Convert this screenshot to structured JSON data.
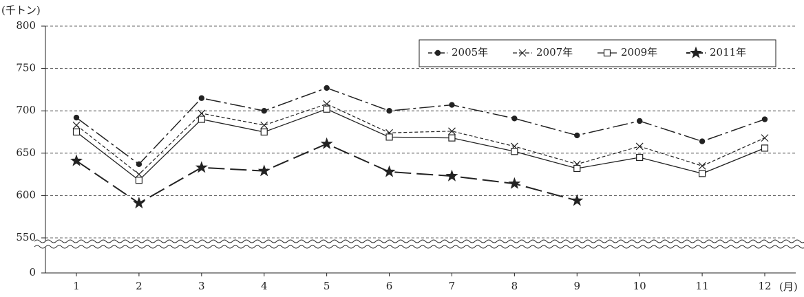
{
  "chart_data": {
    "type": "line",
    "y_label": "(千トン)",
    "x_label": "(月)",
    "categories": [
      "1",
      "2",
      "3",
      "4",
      "5",
      "6",
      "7",
      "8",
      "9",
      "10",
      "11",
      "12"
    ],
    "ylim": [
      0,
      800
    ],
    "yticks": [
      0,
      550,
      600,
      650,
      700,
      750,
      800
    ],
    "axis_break": true,
    "grid": true,
    "legend": "upper right",
    "series": [
      {
        "name": "2005年",
        "color": "#222",
        "marker": "circle",
        "line_style": "dashdot",
        "values": [
          692,
          637,
          715,
          700,
          727,
          700,
          707,
          691,
          671,
          688,
          664,
          690
        ]
      },
      {
        "name": "2007年",
        "color": "#222",
        "marker": "x",
        "line_style": "dashed",
        "values": [
          683,
          625,
          697,
          683,
          708,
          674,
          676,
          658,
          637,
          658,
          635,
          668
        ]
      },
      {
        "name": "2009年",
        "color": "#222",
        "marker": "square",
        "line_style": "solid",
        "values": [
          675,
          618,
          690,
          675,
          702,
          669,
          668,
          652,
          632,
          645,
          626,
          656
        ]
      },
      {
        "name": "2011年",
        "color": "#222",
        "marker": "star",
        "line_style": "longdash",
        "values": [
          641,
          591,
          633,
          629,
          661,
          628,
          623,
          614,
          594,
          null,
          null,
          null
        ]
      }
    ]
  }
}
